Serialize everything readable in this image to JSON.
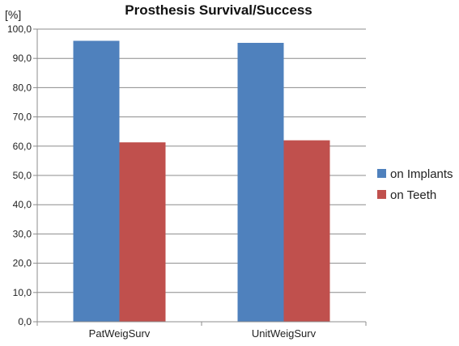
{
  "chart_data": {
    "type": "bar",
    "title": "Prosthesis Survival/Success",
    "ylabel": "[%]",
    "xlabel": "",
    "categories": [
      "PatWeigSurv",
      "UnitWeigSurv"
    ],
    "series": [
      {
        "name": "on Implants",
        "values": [
          96.0,
          95.3
        ],
        "color": "#4F81BD"
      },
      {
        "name": "on Teeth",
        "values": [
          61.3,
          62.0
        ],
        "color": "#C0504D"
      }
    ],
    "ylim": [
      0,
      100
    ],
    "yticks": [
      "0,0",
      "10,0",
      "20,0",
      "30,0",
      "40,0",
      "50,0",
      "60,0",
      "70,0",
      "80,0",
      "90,0",
      "100,0"
    ],
    "grid": true,
    "legend_position": "right"
  }
}
